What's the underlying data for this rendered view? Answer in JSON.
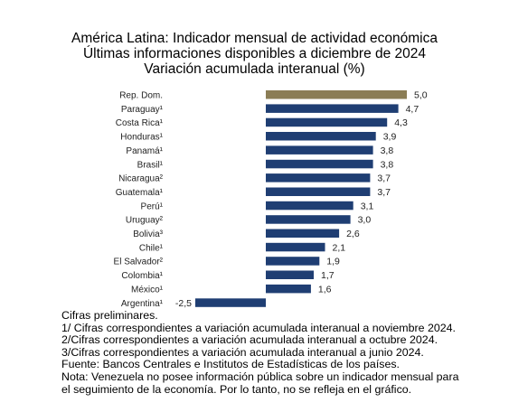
{
  "chart_data": {
    "type": "bar",
    "orientation": "horizontal",
    "title": "América Latina: Indicador mensual de actividad económica",
    "subtitle_lines": [
      "Últimas informaciones disponibles a diciembre de 2024",
      "Variación acumulada interanual (%)"
    ],
    "categories": [
      "Rep. Dom.",
      "Paraguay¹",
      "Costa Rica¹",
      "Honduras¹",
      "Panamá¹",
      "Brasil¹",
      "Nicaragua²",
      "Guatemala¹",
      "Perú¹",
      "Uruguay²",
      "Bolivia³",
      "Chile¹",
      "El Salvador²",
      "Colombia¹",
      "México¹",
      "Argentina¹"
    ],
    "values": [
      5.0,
      4.7,
      4.3,
      3.9,
      3.8,
      3.8,
      3.7,
      3.7,
      3.1,
      3.0,
      2.6,
      2.1,
      1.9,
      1.7,
      1.6,
      -2.5
    ],
    "value_labels": [
      "5,0",
      "4,7",
      "4,3",
      "3,9",
      "3,8",
      "3,8",
      "3,7",
      "3,7",
      "3,1",
      "3,0",
      "2,6",
      "2,1",
      "1,9",
      "1,7",
      "1,6",
      "-2,5"
    ],
    "highlight_index": 0,
    "colors": {
      "highlight": "#8b7d55",
      "default": "#1f3e73"
    },
    "xlim": [
      -2.5,
      5.0
    ],
    "grid": false,
    "legend": "none"
  },
  "notes": [
    "Cifras preliminares.",
    "1/ Cifras correspondientes a variación acumulada interanual a noviembre 2024.",
    "2/Cifras correspondientes a variación acumulada interanual a octubre 2024.",
    "3/Cifras correspondientes a variación acumulada interanual a junio 2024.",
    "Fuente: Bancos Centrales e Institutos de Estadísticas de los países.",
    "Nota: Venezuela no posee información pública sobre un indicador mensual para",
    "el seguimiento de la economía. Por lo tanto, no se refleja en el gráfico."
  ]
}
